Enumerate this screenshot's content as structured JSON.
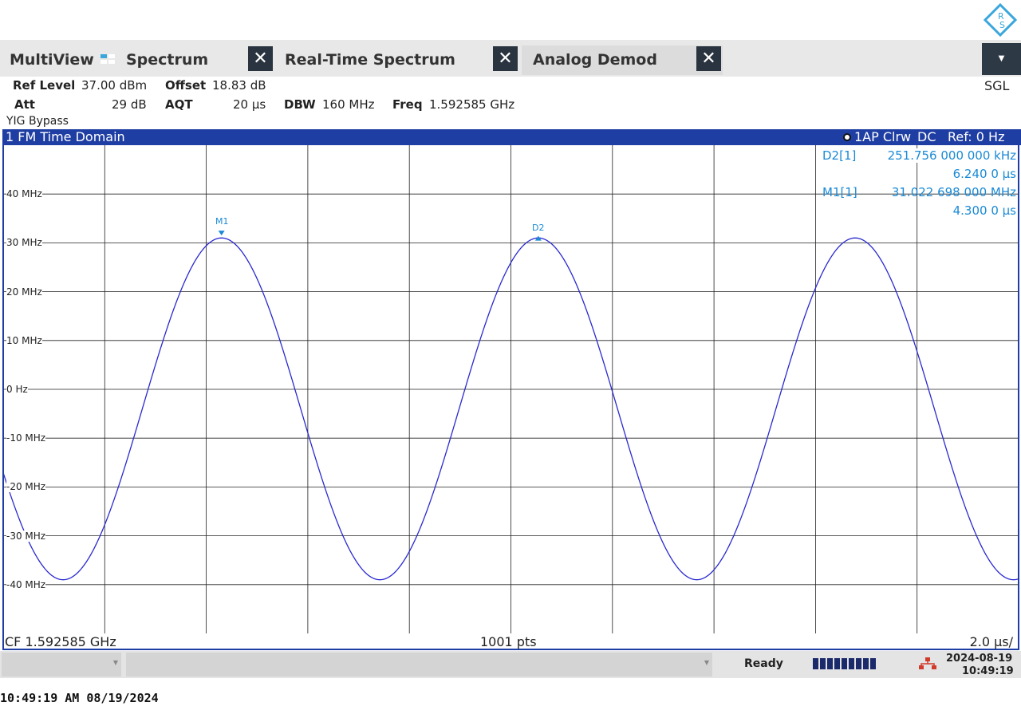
{
  "tabs": {
    "multiview": "MultiView",
    "spectrum": "Spectrum",
    "realtime": "Real-Time Spectrum",
    "analog": "Analog Demod",
    "close_glyph": "✕"
  },
  "mode": "SGL",
  "settings": {
    "ref_level_label": "Ref Level",
    "ref_level_value": "37.00 dBm",
    "offset_label": "Offset",
    "offset_value": "18.83 dB",
    "att_label": "Att",
    "att_value": "29 dB",
    "aqt_label": "AQT",
    "aqt_value": "20 µs",
    "dbw_label": "DBW",
    "dbw_value": "160 MHz",
    "freq_label": "Freq",
    "freq_value": "1.592585 GHz",
    "yig": "YIG Bypass"
  },
  "diagram": {
    "title": "1 FM Time Domain",
    "trace_info": "1AP Clrw",
    "coupling": "DC",
    "ref": "Ref: 0 Hz",
    "cf": "CF 1.592585 GHz",
    "points": "1001 pts",
    "scale": "2.0 µs/"
  },
  "markers": {
    "d2_name": "D2[1]",
    "d2_value": "251.756 000 000 kHz",
    "d2_time": "6.240 0 µs",
    "m1_name": "M1[1]",
    "m1_value": "31.022 698 000 MHz",
    "m1_time": "4.300 0 µs",
    "m1_label": "M1",
    "d2_label": "D2"
  },
  "status": {
    "ready": "Ready",
    "date": "2024-08-19",
    "time": "10:49:19"
  },
  "clock": "10:49:19 AM  08/19/2024",
  "colors": {
    "trace": "#2a2ad0",
    "marker": "#1a8ad6",
    "title_bar": "#1f3ea3"
  },
  "chart_data": {
    "type": "line",
    "y_ticks": [
      "40 MHz",
      "30 MHz",
      "20 MHz",
      "10 MHz",
      "0 Hz",
      "-10 MHz",
      "-20 MHz",
      "-30 MHz",
      "-40 MHz"
    ],
    "ylim_mhz": [
      -50,
      50
    ],
    "xlim_us": [
      0,
      20
    ],
    "x_divisions": 10,
    "signal": {
      "amplitude_mhz": 35,
      "offset_mhz": -4,
      "period_us": 6.24,
      "peak_time_us": 4.3
    },
    "markers": [
      {
        "name": "M1",
        "x_us": 4.3,
        "y_mhz": 31.02
      },
      {
        "name": "D2",
        "x_us": 10.54,
        "y_mhz": 31.27
      }
    ]
  }
}
